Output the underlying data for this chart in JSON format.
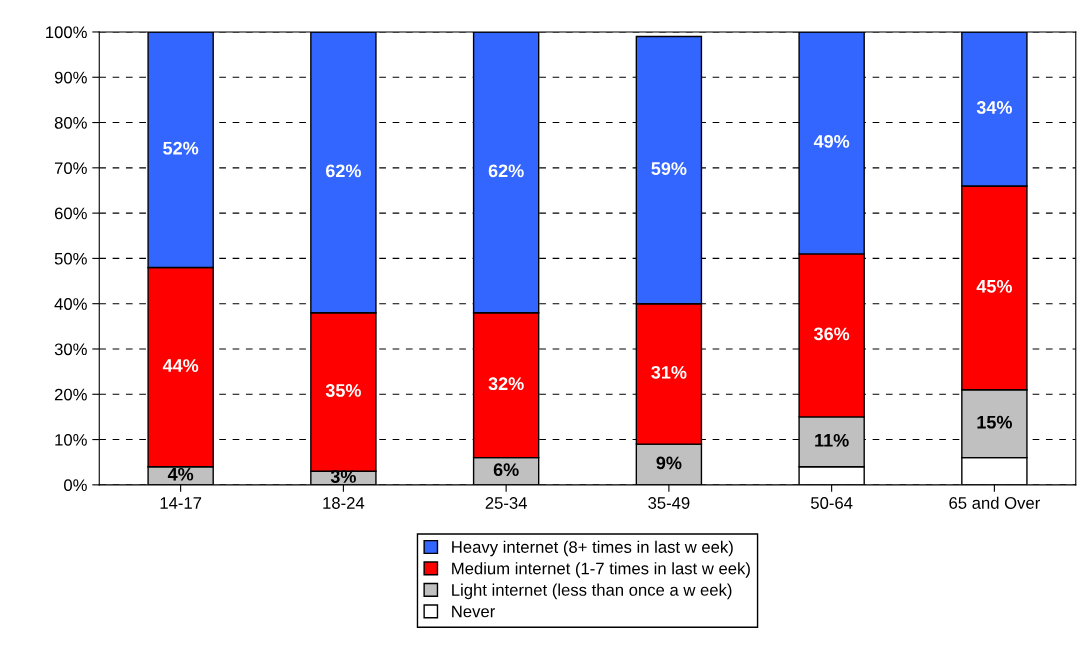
{
  "chart_data": {
    "type": "bar",
    "stacked": true,
    "categories": [
      "14-17",
      "18-24",
      "25-34",
      "35-49",
      "50-64",
      "65 and Over"
    ],
    "series": [
      {
        "name": "Never",
        "color": "#ffffff",
        "values": [
          0,
          0,
          0,
          0,
          4,
          6
        ],
        "value_labels": [
          null,
          null,
          null,
          null,
          null,
          null
        ]
      },
      {
        "name": "Light internet (less than once a w eek)",
        "color": "#c0c0c0",
        "values": [
          4,
          3,
          6,
          9,
          11,
          15
        ],
        "value_labels": [
          "4%",
          "3%",
          "6%",
          "9%",
          "11%",
          "15%"
        ]
      },
      {
        "name": "Medium internet (1-7 times in last w eek)",
        "color": "#ff0000",
        "values": [
          44,
          35,
          32,
          31,
          36,
          45
        ],
        "value_labels": [
          "44%",
          "35%",
          "32%",
          "31%",
          "36%",
          "45%"
        ]
      },
      {
        "name": "Heavy internet (8+ times in last w eek)",
        "color": "#3366ff",
        "values": [
          52,
          62,
          62,
          59,
          49,
          34
        ],
        "value_labels": [
          "52%",
          "62%",
          "62%",
          "59%",
          "49%",
          "34%"
        ]
      }
    ],
    "ylim": [
      0,
      100
    ],
    "yticks": [
      {
        "value": 0,
        "label": "0%"
      },
      {
        "value": 10,
        "label": "10%"
      },
      {
        "value": 20,
        "label": "20%"
      },
      {
        "value": 30,
        "label": "30%"
      },
      {
        "value": 40,
        "label": "40%"
      },
      {
        "value": 50,
        "label": "50%"
      },
      {
        "value": 60,
        "label": "60%"
      },
      {
        "value": 70,
        "label": "70%"
      },
      {
        "value": 80,
        "label": "80%"
      },
      {
        "value": 90,
        "label": "90%"
      },
      {
        "value": 100,
        "label": "100%"
      }
    ],
    "grid": "y",
    "legend": "bottom"
  }
}
